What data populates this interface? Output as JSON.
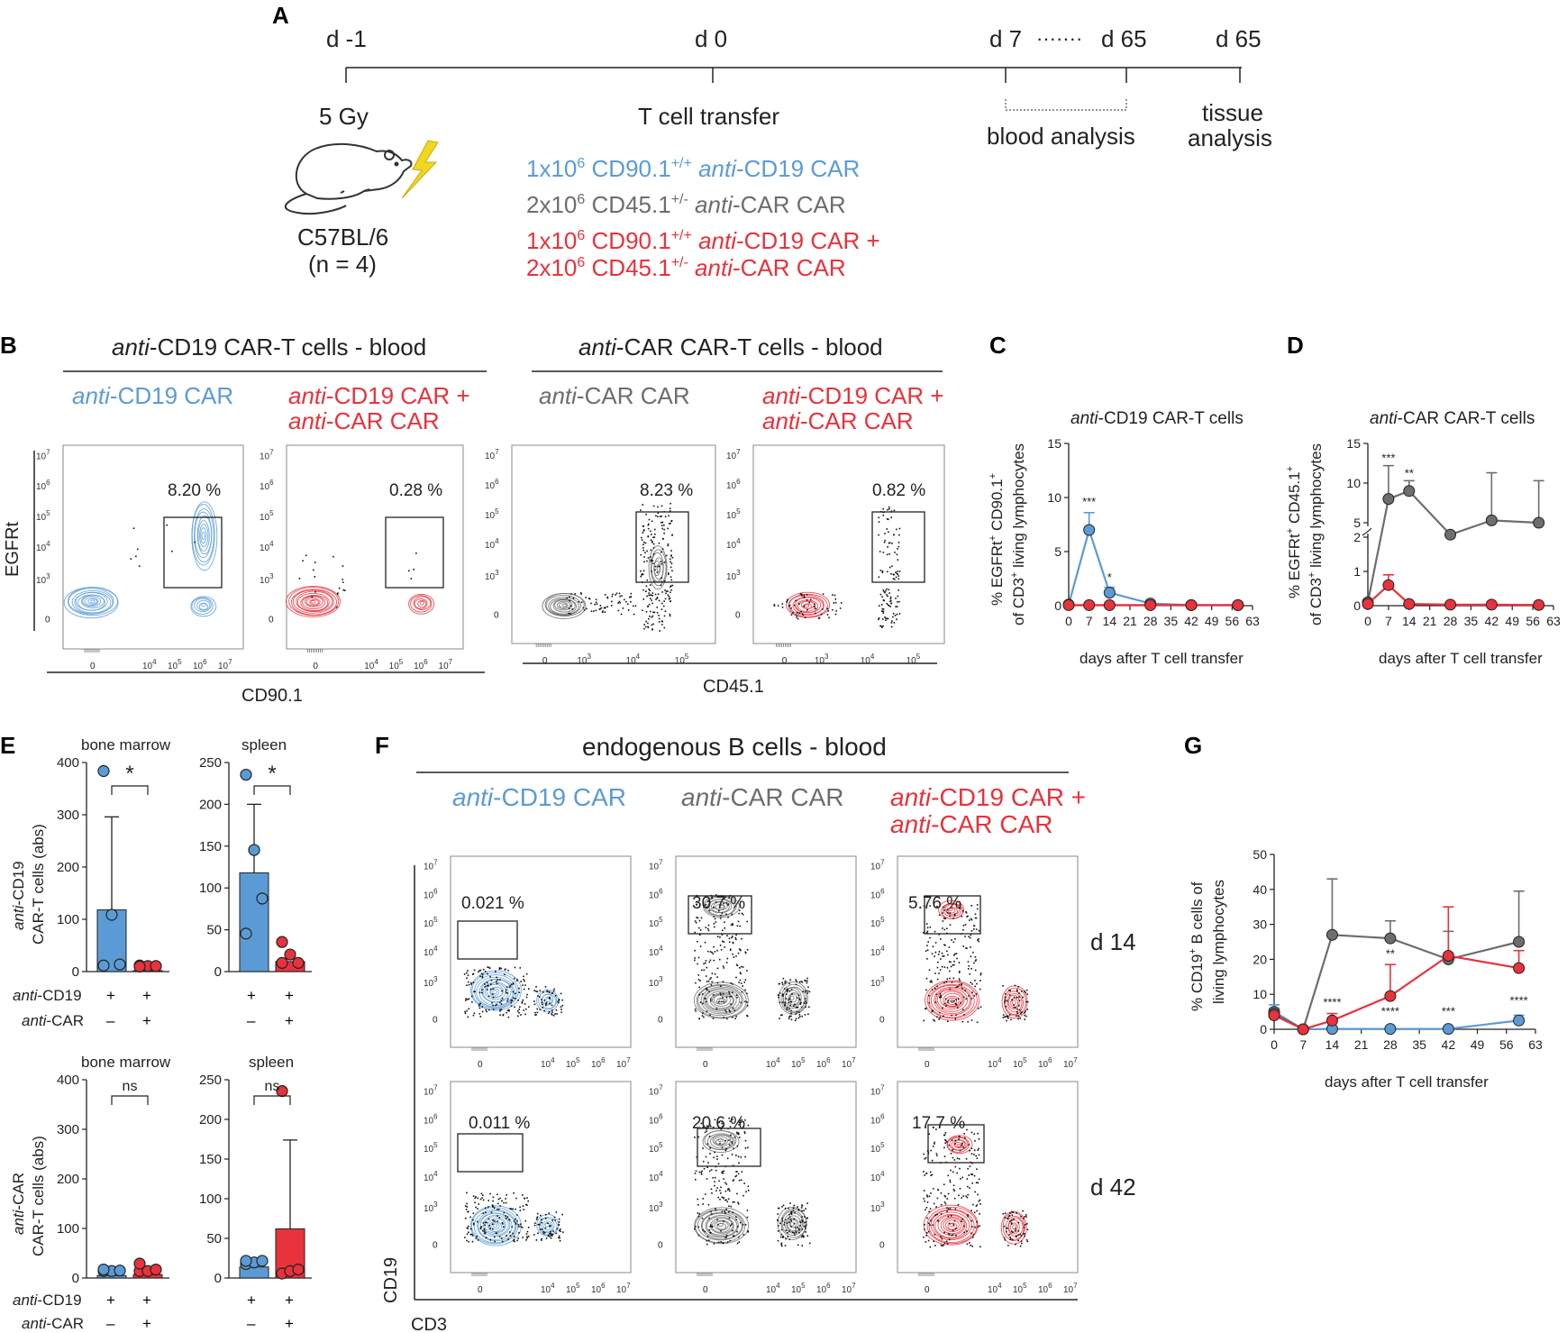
{
  "colors": {
    "blue": "#5b9bd5",
    "red": "#e8323c",
    "grey": "#6d6d6d",
    "dark": "#222222"
  },
  "panelA": {
    "letter": "A",
    "timepoints": [
      "d -1",
      "d 0",
      "d 7",
      "d 65",
      "d 65"
    ],
    "dots": "·······",
    "irradiation": "5 Gy",
    "mouse_strain": "C57BL/6",
    "n": "(n = 4)",
    "transfer_title": "T cell transfer",
    "group_blue": {
      "count": "1x10",
      "exp": "6",
      "marker": "CD90.1",
      "sup": "+/+",
      "italic": "anti",
      "rest": "-CD19 CAR"
    },
    "group_grey": {
      "count": "2x10",
      "exp": "6",
      "marker": "CD45.1",
      "sup": "+/-",
      "italic": "anti",
      "rest": "-CAR CAR"
    },
    "group_red_1": {
      "count": "1x10",
      "exp": "6",
      "marker": "CD90.1",
      "sup": "+/+",
      "italic": "anti",
      "rest": "-CD19 CAR +"
    },
    "group_red_2": {
      "count": "2x10",
      "exp": "6",
      "marker": "CD45.1",
      "sup": "+/-",
      "italic": "anti",
      "rest": "-CAR CAR"
    },
    "blood_analysis": "blood analysis",
    "tissue_analysis_1": "tissue",
    "tissue_analysis_2": "analysis"
  },
  "panelB": {
    "letter": "B",
    "header_left": {
      "italic": "anti",
      "rest": "-CD19 CAR-T cells - blood"
    },
    "header_right": {
      "italic": "anti",
      "rest": "-CAR CAR-T cells - blood"
    },
    "label_blue": {
      "italic": "anti",
      "rest": "-CD19 CAR"
    },
    "label_red_1": {
      "italic": "anti",
      "rest": "-CD19 CAR +"
    },
    "label_red_2": {
      "italic": "anti",
      "rest": "-CAR CAR"
    },
    "label_grey": {
      "italic": "anti",
      "rest": "-CAR CAR"
    },
    "y_axis": "EGFRt",
    "x_axis_left": "CD90.1",
    "x_axis_right": "CD45.1",
    "gate_values": [
      "8.20 %",
      "0.28 %",
      "8.23 %",
      "0.82 %"
    ],
    "tick_base": "10",
    "y_ticks_exp": [
      "7",
      "6",
      "5",
      "4",
      "3"
    ],
    "x_ticks_exp_left": [
      "4",
      "5",
      "6",
      "7"
    ],
    "x_ticks_exp_right": [
      "3",
      "4",
      "5"
    ],
    "zero": "0"
  },
  "panelC": {
    "letter": "C",
    "title": {
      "italic": "anti",
      "rest": "-CD19 CAR-T cells"
    },
    "ylabel_1": "% EGFRt",
    "ylabel_2": "CD90.1",
    "ylabel_3": "of CD3",
    "ylabel_4": "living lymphocytes",
    "sup_plus": "+",
    "xlabel": "days after T cell transfer",
    "yticks": [
      "0",
      "5",
      "10",
      "15"
    ],
    "xticks": [
      "0",
      "7",
      "14",
      "21",
      "28",
      "35",
      "42",
      "49",
      "56",
      "63"
    ],
    "sig": [
      "***",
      "*"
    ]
  },
  "panelD": {
    "letter": "D",
    "title": {
      "italic": "anti",
      "rest": "-CAR CAR-T cells"
    },
    "ylabel_1": "% EGFRt",
    "ylabel_2": "CD45.1",
    "ylabel_3": "of CD3",
    "ylabel_4": "living lymphocytes",
    "sup_plus": "+",
    "xlabel": "days after T cell transfer",
    "yticks_lower": [
      "0",
      "1",
      "2"
    ],
    "yticks_upper": [
      "5",
      "10",
      "15"
    ],
    "xticks": [
      "0",
      "7",
      "14",
      "21",
      "28",
      "35",
      "42",
      "49",
      "56",
      "63"
    ],
    "sig": [
      "***",
      "**"
    ]
  },
  "panelE": {
    "letter": "E",
    "titles": [
      "bone marrow",
      "spleen",
      "bone marrow",
      "spleen"
    ],
    "ylabel_top_1": "anti",
    "ylabel_top_2": "-CD19",
    "ylabel_top_3": "CAR-T cells (abs)",
    "ylabel_bottom_1": "anti",
    "ylabel_bottom_2": "-CAR",
    "ylabel_bottom_3": "CAR-T cells (abs)",
    "row1_label": {
      "italic": "anti",
      "rest": "-CD19"
    },
    "row2_label": {
      "italic": "anti",
      "rest": "-CAR"
    },
    "plus": "+",
    "minus": "–",
    "bm_yticks": [
      "0",
      "100",
      "200",
      "300",
      "400"
    ],
    "spleen_yticks": [
      "0",
      "50",
      "100",
      "150",
      "200",
      "250"
    ],
    "sig_top": [
      "*",
      "*"
    ],
    "sig_bottom": [
      "ns",
      "ns"
    ]
  },
  "panelF": {
    "letter": "F",
    "header": "endogenous B cells - blood",
    "label_blue": {
      "italic": "anti",
      "rest": "-CD19 CAR"
    },
    "label_grey": {
      "italic": "anti",
      "rest": "-CAR CAR"
    },
    "label_red_1": {
      "italic": "anti",
      "rest": "-CD19 CAR +"
    },
    "label_red_2": {
      "italic": "anti",
      "rest": "-CAR CAR"
    },
    "gate_values_d14": [
      "0.021 %",
      "30.7 %",
      "5.76 %"
    ],
    "gate_values_d42": [
      "0.011 %",
      "20.6 %",
      "17.7 %"
    ],
    "row_labels": [
      "d 14",
      "d 42"
    ],
    "y_axis": "CD19",
    "x_axis": "CD3"
  },
  "panelG": {
    "letter": "G",
    "ylabel_1": "% CD19",
    "ylabel_2": "B cells of",
    "ylabel_3": "living lymphocytes",
    "sup_plus": "+",
    "xlabel": "days after T cell transfer",
    "yticks": [
      "0",
      "10",
      "20",
      "30",
      "40",
      "50"
    ],
    "xticks": [
      "0",
      "7",
      "14",
      "21",
      "28",
      "35",
      "42",
      "49",
      "56",
      "63"
    ],
    "sig": [
      "****",
      "**",
      "****",
      "***",
      "****"
    ]
  },
  "chart_data": [
    {
      "type": "line",
      "panel": "C",
      "title": "anti-CD19 CAR-T cells",
      "xlabel": "days after T cell transfer",
      "ylabel": "% EGFRt+ CD90.1+ of CD3+ living lymphocytes",
      "xlim": [
        0,
        63
      ],
      "ylim": [
        0,
        15
      ],
      "x": [
        0,
        7,
        14,
        28,
        42,
        58
      ],
      "series": [
        {
          "name": "anti-CD19 CAR",
          "color": "blue",
          "values": [
            0.1,
            7.0,
            1.2,
            0.2,
            0.05,
            0.05
          ],
          "error": [
            0,
            1.6,
            0.5,
            0.1,
            0,
            0
          ]
        },
        {
          "name": "anti-CD19 CAR + anti-CAR CAR",
          "color": "red",
          "values": [
            0.05,
            0.05,
            0.05,
            0.05,
            0.05,
            0.05
          ],
          "error": [
            0,
            0,
            0,
            0,
            0,
            0
          ]
        }
      ]
    },
    {
      "type": "line",
      "panel": "D",
      "title": "anti-CAR CAR-T cells",
      "xlabel": "days after T cell transfer",
      "ylabel": "% EGFRt+ CD45.1+ of CD3+ living lymphocytes",
      "xlim": [
        0,
        63
      ],
      "ylim": [
        0,
        15
      ],
      "axis_break": [
        2,
        5
      ],
      "x": [
        0,
        7,
        14,
        28,
        42,
        58
      ],
      "series": [
        {
          "name": "anti-CAR CAR",
          "color": "grey",
          "values": [
            0.1,
            8.0,
            9.0,
            3.5,
            5.3,
            5.0
          ],
          "error": [
            0,
            4.2,
            1.3,
            0,
            6.0,
            5.3
          ]
        },
        {
          "name": "anti-CD19 CAR + anti-CAR CAR",
          "color": "red",
          "values": [
            0.05,
            0.6,
            0.05,
            0.03,
            0.03,
            0.02
          ],
          "error": [
            0,
            0.3,
            0,
            0,
            0,
            0
          ]
        }
      ]
    },
    {
      "type": "bar",
      "panel": "E",
      "subplots": [
        {
          "title": "bone marrow",
          "ylabel": "anti-CD19 CAR-T cells (abs)",
          "ylim": [
            0,
            400
          ],
          "categories": [
            "anti-CD19 CAR",
            "anti-CD19 CAR + anti-CAR CAR"
          ],
          "values": [
            118,
            2
          ],
          "error": [
            178,
            0
          ],
          "points": [
            [
              375,
              100,
              5,
              3
            ],
            [
              3,
              2,
              2,
              1
            ]
          ]
        },
        {
          "title": "spleen",
          "ylabel": "anti-CD19 CAR-T cells (abs)",
          "ylim": [
            0,
            250
          ],
          "categories": [
            "anti-CD19 CAR",
            "anti-CD19 CAR + anti-CAR CAR"
          ],
          "values": [
            118,
            12
          ],
          "error": [
            82,
            0
          ],
          "points": [
            [
              230,
              140,
              82,
              40
            ],
            [
              30,
              15,
              5,
              5
            ]
          ]
        },
        {
          "title": "bone marrow",
          "ylabel": "anti-CAR CAR-T cells (abs)",
          "ylim": [
            0,
            400
          ],
          "categories": [
            "anti-CD19 CAR",
            "anti-CAR CAR + anti-CD19 CAR"
          ],
          "values": [
            5,
            7
          ],
          "error": [
            0,
            0
          ],
          "points": [
            [
              5,
              5,
              6,
              8
            ],
            [
              5,
              5,
              8,
              20
            ]
          ]
        },
        {
          "title": "spleen",
          "ylabel": "anti-CAR CAR-T cells (abs)",
          "ylim": [
            0,
            250
          ],
          "categories": [
            "anti-CD19 CAR",
            "anti-CD19 CAR + anti-CAR CAR"
          ],
          "values": [
            14,
            62
          ],
          "error": [
            0,
            112
          ],
          "points": [
            [
              12,
              14,
              16,
              16
            ],
            [
              0,
              3,
              5,
              230
            ]
          ]
        }
      ]
    },
    {
      "type": "line",
      "panel": "G",
      "xlabel": "days after T cell transfer",
      "ylabel": "% CD19+ B cells of living lymphocytes",
      "xlim": [
        0,
        63
      ],
      "ylim": [
        0,
        50
      ],
      "x": [
        0,
        7,
        14,
        28,
        42,
        59
      ],
      "series": [
        {
          "name": "anti-CD19 CAR",
          "color": "blue",
          "values": [
            5,
            0,
            0.1,
            0.1,
            0.1,
            2.5
          ],
          "error": [
            2,
            0,
            0,
            0,
            0,
            1.5
          ]
        },
        {
          "name": "anti-CAR CAR",
          "color": "grey",
          "values": [
            4.5,
            0,
            27,
            26,
            20,
            25
          ],
          "error": [
            1.5,
            0,
            16,
            5,
            8,
            14.5
          ]
        },
        {
          "name": "anti-CD19 CAR + anti-CAR CAR",
          "color": "red",
          "values": [
            4,
            0,
            2.5,
            9.5,
            21,
            17.5
          ],
          "error": [
            1,
            0,
            2,
            9,
            14,
            5
          ]
        }
      ]
    }
  ]
}
